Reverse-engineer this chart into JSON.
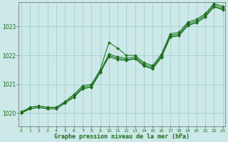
{
  "background_color": "#cce8e8",
  "grid_color": "#99cccc",
  "line_color": "#1a6e1a",
  "marker_color": "#1a6e1a",
  "xlabel": "Graphe pression niveau de la mer (hPa)",
  "xlabel_color": "#1a6e1a",
  "tick_color": "#1a6e1a",
  "spine_color": "#666666",
  "ylim": [
    1019.55,
    1023.85
  ],
  "xlim": [
    -0.3,
    23.3
  ],
  "yticks": [
    1020,
    1021,
    1022,
    1023
  ],
  "xticks": [
    0,
    1,
    2,
    3,
    4,
    5,
    6,
    7,
    8,
    9,
    10,
    11,
    12,
    13,
    14,
    15,
    16,
    17,
    18,
    19,
    20,
    21,
    22,
    23
  ],
  "figsize": [
    3.2,
    2.0
  ],
  "dpi": 100,
  "series": [
    [
      1020.0,
      1020.2,
      1020.25,
      1020.2,
      1020.2,
      1020.4,
      1020.65,
      1020.95,
      1021.0,
      1021.5,
      1022.45,
      1022.25,
      1022.0,
      1022.0,
      1021.75,
      1021.65,
      1022.05,
      1022.75,
      1022.8,
      1023.15,
      1023.25,
      1023.45,
      1023.8,
      1023.7
    ],
    [
      1020.0,
      1020.15,
      1020.2,
      1020.15,
      1020.15,
      1020.35,
      1020.55,
      1020.85,
      1020.9,
      1021.4,
      1022.0,
      1021.9,
      1021.85,
      1021.9,
      1021.65,
      1021.55,
      1021.95,
      1022.65,
      1022.7,
      1023.05,
      1023.15,
      1023.35,
      1023.7,
      1023.6
    ],
    [
      1020.0,
      1020.15,
      1020.2,
      1020.15,
      1020.15,
      1020.35,
      1020.55,
      1020.85,
      1020.9,
      1021.4,
      1021.95,
      1021.85,
      1021.82,
      1021.88,
      1021.63,
      1021.53,
      1021.93,
      1022.63,
      1022.68,
      1023.03,
      1023.13,
      1023.33,
      1023.68,
      1023.58
    ],
    [
      1020.05,
      1020.2,
      1020.25,
      1020.2,
      1020.2,
      1020.4,
      1020.6,
      1020.9,
      1020.95,
      1021.45,
      1022.05,
      1021.95,
      1021.9,
      1021.95,
      1021.7,
      1021.6,
      1022.0,
      1022.7,
      1022.75,
      1023.1,
      1023.2,
      1023.4,
      1023.75,
      1023.65
    ]
  ]
}
